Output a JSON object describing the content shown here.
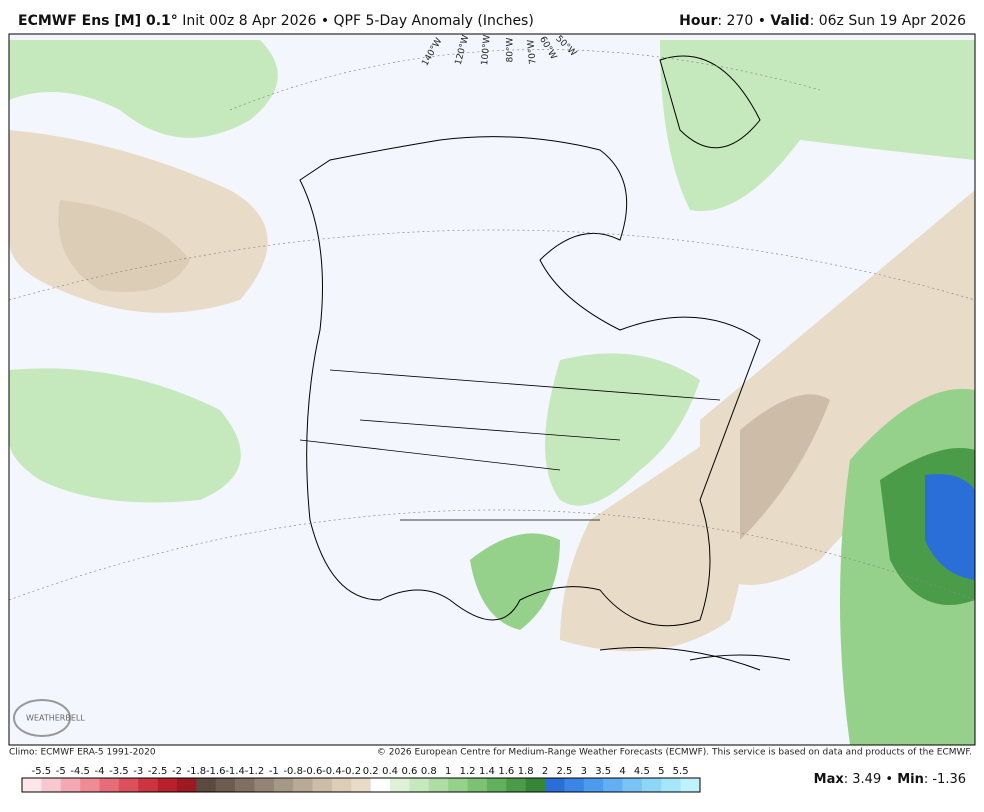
{
  "header": {
    "model": "ECMWF Ens [M] 0.1°",
    "init": "Init 00z 8 Apr 2026",
    "separator": "•",
    "product": "QPF 5-Day Anomaly (Inches)",
    "hour_label": "Hour",
    "hour_value": ": 270",
    "valid_label": "Valid",
    "valid_value": ": 06z Sun 19 Apr 2026"
  },
  "map": {
    "longitude_labels": [
      "140°W",
      "120°W",
      "100°W",
      "80°W",
      "70°W",
      "60°W",
      "50°W"
    ],
    "logo": "WEATHERBELL"
  },
  "footer": {
    "climo": "Climo: ECMWF ERA-5 1991-2020",
    "copyright": "© 2026 European Centre for Medium-Range Weather Forecasts (ECMWF). This service is based on data and products of the ECMWF."
  },
  "colorbar": {
    "labels": [
      "-5.5",
      "-5",
      "-4.5",
      "-4",
      "-3.5",
      "-3",
      "-2.5",
      "-2",
      "-1.8",
      "-1.6",
      "-1.4",
      "-1.2",
      "-1",
      "-0.8",
      "-0.6",
      "-0.4",
      "-0.2",
      "0.2",
      "0.4",
      "0.6",
      "0.8",
      "1",
      "1.2",
      "1.4",
      "1.6",
      "1.8",
      "2",
      "2.5",
      "3",
      "3.5",
      "4",
      "4.5",
      "5",
      "5.5"
    ],
    "colors": [
      "#fde6ea",
      "#f9c7cf",
      "#f4a9b2",
      "#ee8b95",
      "#e66d78",
      "#db505c",
      "#cc3440",
      "#b8202b",
      "#9e1a22",
      "#5c4a40",
      "#6e5c51",
      "#807062",
      "#938474",
      "#a69886",
      "#b9aa97",
      "#cdbca8",
      "#dccdb7",
      "#e8dcc8",
      "#ffffff",
      "#dff2d8",
      "#c6e8bd",
      "#aedda3",
      "#95d18a",
      "#7cc272",
      "#63b05c",
      "#4a9c48",
      "#368638",
      "#2a6fd8",
      "#3a86e6",
      "#4c9cee",
      "#62b0f3",
      "#78c4f6",
      "#8ed6f8",
      "#a6e6fa",
      "#c0f2fc"
    ]
  },
  "stats": {
    "max_label": "Max",
    "max_value": ": 3.49",
    "sep": "•",
    "min_label": "Min",
    "min_value": ": -1.36"
  }
}
